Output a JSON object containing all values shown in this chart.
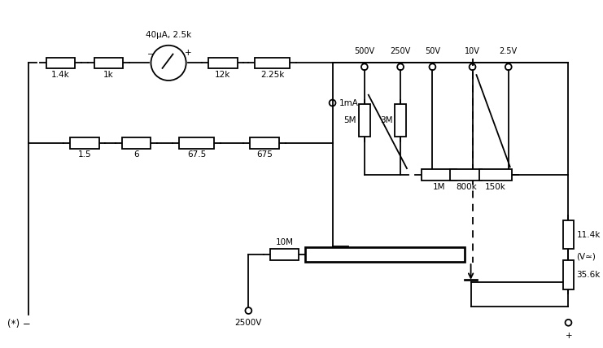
{
  "background_color": "#ffffff",
  "fig_width": 7.41,
  "fig_height": 4.28,
  "dpi": 100,
  "meter_label": "40μA, 2.5k",
  "v_ac_label": "(V≃)",
  "star_label": "(*) −",
  "current_label": "1mA",
  "terminal_2500V_label": "2500V",
  "voltage_labels": [
    "500V",
    "250V",
    "50V",
    "10V",
    "2.5V"
  ]
}
